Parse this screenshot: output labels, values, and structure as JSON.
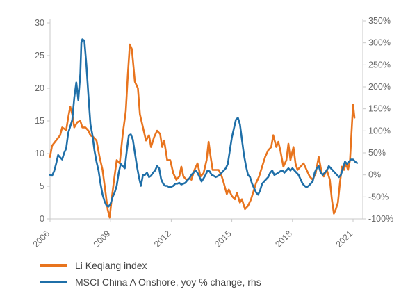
{
  "chart_data": {
    "type": "line",
    "title": "",
    "xlabel": "",
    "ylabel": "",
    "y2label": "",
    "xlim": [
      2006,
      2021.8
    ],
    "ylim": [
      0,
      30
    ],
    "y2lim": [
      -100,
      350
    ],
    "x_ticks": [
      "2006",
      "2009",
      "2012",
      "2015",
      "2018",
      "2021"
    ],
    "y_ticks": [
      "0",
      "5",
      "10",
      "15",
      "20",
      "25",
      "30"
    ],
    "y2_ticks": [
      "-100%",
      "-50%",
      "0%",
      "50%",
      "100%",
      "150%",
      "200%",
      "250%",
      "300%",
      "350%"
    ],
    "colors": {
      "li": "#E8741E",
      "msci": "#1F6FA8",
      "axis": "#c9c9c9",
      "text": "#6b6b6b"
    },
    "series": [
      {
        "name": "Li Keqiang index",
        "axis": "left",
        "color": "#E8741E",
        "points": [
          [
            2006.0,
            9.5
          ],
          [
            2006.1,
            11.2
          ],
          [
            2006.3,
            12.0
          ],
          [
            2006.5,
            12.8
          ],
          [
            2006.6,
            14.0
          ],
          [
            2006.8,
            13.6
          ],
          [
            2006.9,
            15.5
          ],
          [
            2007.0,
            17.2
          ],
          [
            2007.1,
            16.0
          ],
          [
            2007.2,
            14.0
          ],
          [
            2007.35,
            14.8
          ],
          [
            2007.5,
            15.0
          ],
          [
            2007.6,
            14.0
          ],
          [
            2007.75,
            14.0
          ],
          [
            2007.9,
            13.5
          ],
          [
            2008.0,
            12.8
          ],
          [
            2008.15,
            12.5
          ],
          [
            2008.3,
            12.0
          ],
          [
            2008.45,
            9.5
          ],
          [
            2008.6,
            7.5
          ],
          [
            2008.75,
            4.0
          ],
          [
            2008.85,
            1.5
          ],
          [
            2008.95,
            0.2
          ],
          [
            2009.05,
            3.0
          ],
          [
            2009.15,
            5.5
          ],
          [
            2009.3,
            9.0
          ],
          [
            2009.45,
            8.5
          ],
          [
            2009.6,
            13.0
          ],
          [
            2009.75,
            16.5
          ],
          [
            2009.85,
            22.0
          ],
          [
            2009.95,
            26.7
          ],
          [
            2010.05,
            26.0
          ],
          [
            2010.2,
            21.0
          ],
          [
            2010.35,
            20.0
          ],
          [
            2010.45,
            16.0
          ],
          [
            2010.6,
            14.0
          ],
          [
            2010.75,
            12.0
          ],
          [
            2010.9,
            12.8
          ],
          [
            2011.0,
            11.0
          ],
          [
            2011.15,
            12.5
          ],
          [
            2011.3,
            13.5
          ],
          [
            2011.45,
            13.0
          ],
          [
            2011.55,
            11.0
          ],
          [
            2011.65,
            12.0
          ],
          [
            2011.8,
            9.0
          ],
          [
            2011.95,
            9.0
          ],
          [
            2012.1,
            7.0
          ],
          [
            2012.25,
            6.0
          ],
          [
            2012.4,
            6.5
          ],
          [
            2012.5,
            8.0
          ],
          [
            2012.6,
            6.5
          ],
          [
            2012.75,
            6.0
          ],
          [
            2012.9,
            6.2
          ],
          [
            2013.0,
            6.0
          ],
          [
            2013.15,
            7.5
          ],
          [
            2013.3,
            8.5
          ],
          [
            2013.45,
            6.5
          ],
          [
            2013.6,
            7.0
          ],
          [
            2013.75,
            9.0
          ],
          [
            2013.85,
            11.8
          ],
          [
            2013.95,
            9.5
          ],
          [
            2014.05,
            7.5
          ],
          [
            2014.2,
            7.5
          ],
          [
            2014.35,
            7.5
          ],
          [
            2014.5,
            6.5
          ],
          [
            2014.6,
            5.5
          ],
          [
            2014.75,
            3.8
          ],
          [
            2014.85,
            4.5
          ],
          [
            2015.0,
            3.5
          ],
          [
            2015.15,
            3.0
          ],
          [
            2015.25,
            4.0
          ],
          [
            2015.4,
            2.5
          ],
          [
            2015.5,
            3.0
          ],
          [
            2015.65,
            1.5
          ],
          [
            2015.8,
            2.0
          ],
          [
            2015.95,
            3.0
          ],
          [
            2016.05,
            4.0
          ],
          [
            2016.2,
            5.5
          ],
          [
            2016.35,
            6.5
          ],
          [
            2016.5,
            8.0
          ],
          [
            2016.65,
            9.5
          ],
          [
            2016.8,
            10.5
          ],
          [
            2016.95,
            11.0
          ],
          [
            2017.05,
            12.8
          ],
          [
            2017.2,
            11.0
          ],
          [
            2017.3,
            11.8
          ],
          [
            2017.4,
            10.5
          ],
          [
            2017.55,
            8.0
          ],
          [
            2017.7,
            9.0
          ],
          [
            2017.8,
            11.5
          ],
          [
            2017.9,
            9.0
          ],
          [
            2018.05,
            11.0
          ],
          [
            2018.15,
            8.5
          ],
          [
            2018.25,
            7.5
          ],
          [
            2018.4,
            8.0
          ],
          [
            2018.55,
            8.5
          ],
          [
            2018.7,
            7.5
          ],
          [
            2018.85,
            6.5
          ],
          [
            2019.0,
            6.0
          ],
          [
            2019.15,
            7.0
          ],
          [
            2019.3,
            9.5
          ],
          [
            2019.45,
            7.0
          ],
          [
            2019.55,
            6.5
          ],
          [
            2019.7,
            7.5
          ],
          [
            2019.85,
            6.0
          ],
          [
            2019.95,
            3.0
          ],
          [
            2020.05,
            0.8
          ],
          [
            2020.15,
            1.5
          ],
          [
            2020.25,
            2.5
          ],
          [
            2020.35,
            5.5
          ],
          [
            2020.45,
            8.0
          ],
          [
            2020.55,
            7.5
          ],
          [
            2020.65,
            8.5
          ],
          [
            2020.75,
            7.5
          ],
          [
            2020.85,
            9.0
          ],
          [
            2020.92,
            13.0
          ],
          [
            2021.0,
            17.5
          ],
          [
            2021.07,
            15.5
          ]
        ]
      },
      {
        "name": "MSCI China A Onshore, yoy % change, rhs",
        "axis": "right",
        "color": "#1F6FA8",
        "points": [
          [
            2006.0,
            0
          ],
          [
            2006.1,
            -2
          ],
          [
            2006.2,
            8
          ],
          [
            2006.3,
            25
          ],
          [
            2006.4,
            45
          ],
          [
            2006.5,
            40
          ],
          [
            2006.6,
            35
          ],
          [
            2006.7,
            50
          ],
          [
            2006.8,
            60
          ],
          [
            2006.9,
            95
          ],
          [
            2007.0,
            110
          ],
          [
            2007.1,
            125
          ],
          [
            2007.2,
            175
          ],
          [
            2007.3,
            210
          ],
          [
            2007.4,
            170
          ],
          [
            2007.5,
            230
          ],
          [
            2007.55,
            300
          ],
          [
            2007.6,
            308
          ],
          [
            2007.7,
            305
          ],
          [
            2007.8,
            250
          ],
          [
            2007.9,
            180
          ],
          [
            2008.0,
            115
          ],
          [
            2008.1,
            90
          ],
          [
            2008.2,
            55
          ],
          [
            2008.3,
            30
          ],
          [
            2008.4,
            10
          ],
          [
            2008.5,
            -20
          ],
          [
            2008.6,
            -45
          ],
          [
            2008.7,
            -60
          ],
          [
            2008.8,
            -70
          ],
          [
            2008.9,
            -72
          ],
          [
            2009.0,
            -65
          ],
          [
            2009.1,
            -50
          ],
          [
            2009.2,
            -40
          ],
          [
            2009.3,
            -25
          ],
          [
            2009.4,
            5
          ],
          [
            2009.5,
            25
          ],
          [
            2009.6,
            20
          ],
          [
            2009.7,
            15
          ],
          [
            2009.8,
            55
          ],
          [
            2009.9,
            90
          ],
          [
            2010.0,
            92
          ],
          [
            2010.1,
            80
          ],
          [
            2010.2,
            50
          ],
          [
            2010.3,
            20
          ],
          [
            2010.4,
            -5
          ],
          [
            2010.5,
            -25
          ],
          [
            2010.6,
            0
          ],
          [
            2010.7,
            0
          ],
          [
            2010.8,
            5
          ],
          [
            2010.9,
            -5
          ],
          [
            2011.0,
            -2
          ],
          [
            2011.1,
            5
          ],
          [
            2011.2,
            10
          ],
          [
            2011.3,
            20
          ],
          [
            2011.4,
            15
          ],
          [
            2011.5,
            -10
          ],
          [
            2011.6,
            -20
          ],
          [
            2011.7,
            -25
          ],
          [
            2011.8,
            -25
          ],
          [
            2011.9,
            -28
          ],
          [
            2012.0,
            -27
          ],
          [
            2012.1,
            -25
          ],
          [
            2012.2,
            -20
          ],
          [
            2012.3,
            -20
          ],
          [
            2012.4,
            -18
          ],
          [
            2012.5,
            -22
          ],
          [
            2012.6,
            -20
          ],
          [
            2012.7,
            -18
          ],
          [
            2012.8,
            -12
          ],
          [
            2012.9,
            -8
          ],
          [
            2013.0,
            0
          ],
          [
            2013.1,
            5
          ],
          [
            2013.2,
            10
          ],
          [
            2013.3,
            5
          ],
          [
            2013.4,
            -5
          ],
          [
            2013.5,
            -15
          ],
          [
            2013.6,
            -8
          ],
          [
            2013.7,
            0
          ],
          [
            2013.8,
            10
          ],
          [
            2013.9,
            8
          ],
          [
            2014.0,
            0
          ],
          [
            2014.1,
            -2
          ],
          [
            2014.2,
            -5
          ],
          [
            2014.3,
            -3
          ],
          [
            2014.4,
            0
          ],
          [
            2014.5,
            5
          ],
          [
            2014.6,
            10
          ],
          [
            2014.7,
            15
          ],
          [
            2014.8,
            25
          ],
          [
            2014.9,
            55
          ],
          [
            2015.0,
            85
          ],
          [
            2015.1,
            105
          ],
          [
            2015.2,
            125
          ],
          [
            2015.3,
            130
          ],
          [
            2015.4,
            115
          ],
          [
            2015.5,
            80
          ],
          [
            2015.6,
            45
          ],
          [
            2015.7,
            20
          ],
          [
            2015.8,
            0
          ],
          [
            2015.9,
            -5
          ],
          [
            2016.0,
            -20
          ],
          [
            2016.1,
            -30
          ],
          [
            2016.2,
            -40
          ],
          [
            2016.3,
            -45
          ],
          [
            2016.4,
            -35
          ],
          [
            2016.5,
            -20
          ],
          [
            2016.6,
            -15
          ],
          [
            2016.7,
            -10
          ],
          [
            2016.8,
            -5
          ],
          [
            2016.9,
            5
          ],
          [
            2017.0,
            10
          ],
          [
            2017.1,
            0
          ],
          [
            2017.2,
            2
          ],
          [
            2017.3,
            5
          ],
          [
            2017.4,
            8
          ],
          [
            2017.5,
            10
          ],
          [
            2017.6,
            5
          ],
          [
            2017.7,
            10
          ],
          [
            2017.8,
            15
          ],
          [
            2017.9,
            10
          ],
          [
            2018.0,
            15
          ],
          [
            2018.1,
            10
          ],
          [
            2018.2,
            5
          ],
          [
            2018.3,
            0
          ],
          [
            2018.4,
            -10
          ],
          [
            2018.5,
            -20
          ],
          [
            2018.6,
            -25
          ],
          [
            2018.7,
            -28
          ],
          [
            2018.8,
            -25
          ],
          [
            2018.9,
            -20
          ],
          [
            2019.0,
            -15
          ],
          [
            2019.1,
            5
          ],
          [
            2019.2,
            15
          ],
          [
            2019.3,
            20
          ],
          [
            2019.4,
            5
          ],
          [
            2019.5,
            0
          ],
          [
            2019.6,
            5
          ],
          [
            2019.7,
            10
          ],
          [
            2019.8,
            20
          ],
          [
            2019.9,
            15
          ],
          [
            2020.0,
            10
          ],
          [
            2020.1,
            5
          ],
          [
            2020.2,
            0
          ],
          [
            2020.3,
            -5
          ],
          [
            2020.4,
            0
          ],
          [
            2020.5,
            15
          ],
          [
            2020.6,
            30
          ],
          [
            2020.7,
            25
          ],
          [
            2020.8,
            30
          ],
          [
            2020.9,
            35
          ],
          [
            2021.0,
            35
          ],
          [
            2021.1,
            30
          ],
          [
            2021.2,
            27
          ]
        ]
      }
    ],
    "legend": [
      {
        "label": "Li Keqiang index",
        "color": "#E8741E"
      },
      {
        "label": "MSCI China A Onshore, yoy % change, rhs",
        "color": "#1F6FA8"
      }
    ]
  }
}
